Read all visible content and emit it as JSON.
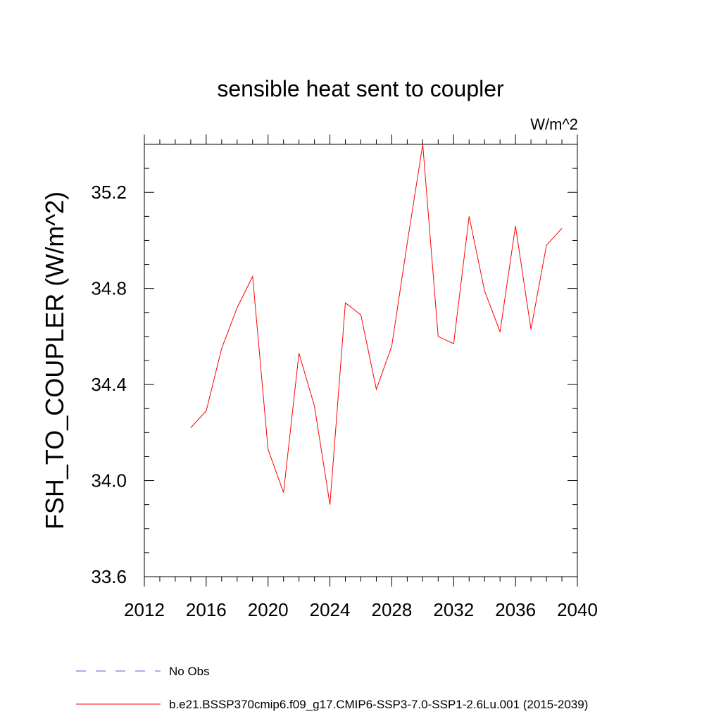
{
  "chart_data": {
    "type": "line",
    "title": "sensible heat sent to coupler",
    "units_label": "W/m^2",
    "ylabel": "FSH_TO_COUPLER  (W/m^2)",
    "xlabel": "",
    "xlim": [
      2012,
      2040
    ],
    "ylim": [
      33.6,
      35.4
    ],
    "x_ticks": [
      2012,
      2016,
      2020,
      2024,
      2028,
      2032,
      2036,
      2040
    ],
    "y_ticks": [
      33.6,
      34.0,
      34.4,
      34.8,
      35.2
    ],
    "x_tick_labels": [
      "2012",
      "2016",
      "2020",
      "2024",
      "2028",
      "2032",
      "2036",
      "2040"
    ],
    "y_tick_labels": [
      "33.6",
      "34.0",
      "34.4",
      "34.8",
      "35.2"
    ],
    "grid": false,
    "legend_position": "bottom",
    "series": [
      {
        "name": "b.e21.BSSP370cmip6.f09_g17.CMIP6-SSP3-7.0-SSP1-2.6Lu.001 (2015-2039)",
        "color": "#ff0000",
        "style": "solid",
        "x": [
          2015,
          2016,
          2017,
          2018,
          2019,
          2020,
          2021,
          2022,
          2023,
          2024,
          2025,
          2026,
          2027,
          2028,
          2029,
          2030,
          2031,
          2032,
          2033,
          2034,
          2035,
          2036,
          2037,
          2038,
          2039
        ],
        "values": [
          34.22,
          34.29,
          34.55,
          34.72,
          34.85,
          34.13,
          33.95,
          34.53,
          34.31,
          33.9,
          34.74,
          34.69,
          34.38,
          34.56,
          34.99,
          35.4,
          34.6,
          34.57,
          35.1,
          34.79,
          34.62,
          35.06,
          34.63,
          34.98,
          35.05
        ]
      }
    ],
    "legend": [
      {
        "label": "No Obs",
        "color": "#6a5acd",
        "style": "dashed"
      },
      {
        "label": "b.e21.BSSP370cmip6.f09_g17.CMIP6-SSP3-7.0-SSP1-2.6Lu.001 (2015-2039)",
        "color": "#ff0000",
        "style": "solid"
      }
    ]
  }
}
